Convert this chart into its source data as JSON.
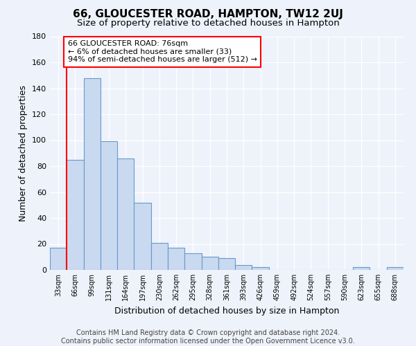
{
  "title1": "66, GLOUCESTER ROAD, HAMPTON, TW12 2UJ",
  "title2": "Size of property relative to detached houses in Hampton",
  "xlabel": "Distribution of detached houses by size in Hampton",
  "ylabel": "Number of detached properties",
  "footer_line1": "Contains HM Land Registry data © Crown copyright and database right 2024.",
  "footer_line2": "Contains public sector information licensed under the Open Government Licence v3.0.",
  "bin_labels": [
    "33sqm",
    "66sqm",
    "99sqm",
    "131sqm",
    "164sqm",
    "197sqm",
    "230sqm",
    "262sqm",
    "295sqm",
    "328sqm",
    "361sqm",
    "393sqm",
    "426sqm",
    "459sqm",
    "492sqm",
    "524sqm",
    "557sqm",
    "590sqm",
    "623sqm",
    "655sqm",
    "688sqm"
  ],
  "bar_values": [
    17,
    85,
    148,
    99,
    86,
    52,
    21,
    17,
    13,
    10,
    9,
    4,
    2,
    0,
    0,
    0,
    0,
    0,
    2,
    0,
    2
  ],
  "bar_color": "#c9d9ef",
  "bar_edge_color": "#6699cc",
  "ylim": [
    0,
    180
  ],
  "yticks": [
    0,
    20,
    40,
    60,
    80,
    100,
    120,
    140,
    160,
    180
  ],
  "red_line_bin_index": 1,
  "annotation_box_text": "66 GLOUCESTER ROAD: 76sqm\n← 6% of detached houses are smaller (33)\n94% of semi-detached houses are larger (512) →",
  "background_color": "#eef2fb",
  "plot_bg_color": "#eef2fb",
  "grid_color": "#ffffff",
  "title_fontsize": 11,
  "subtitle_fontsize": 9.5,
  "annotation_fontsize": 8,
  "ylabel_fontsize": 9,
  "xlabel_fontsize": 9,
  "footer_fontsize": 7
}
